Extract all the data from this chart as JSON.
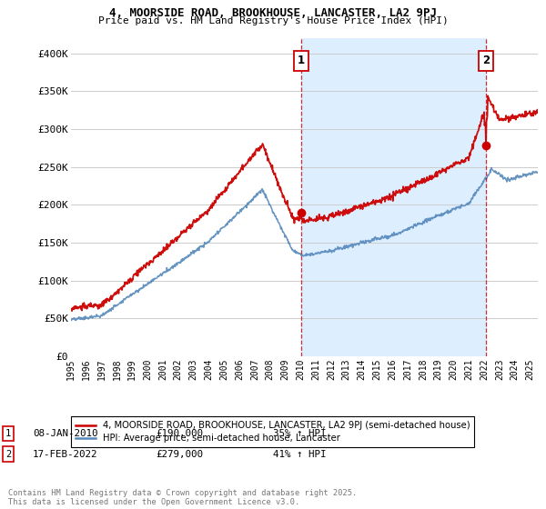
{
  "title_line1": "4, MOORSIDE ROAD, BROOKHOUSE, LANCASTER, LA2 9PJ",
  "title_line2": "Price paid vs. HM Land Registry's House Price Index (HPI)",
  "ylabel_ticks": [
    "£0",
    "£50K",
    "£100K",
    "£150K",
    "£200K",
    "£250K",
    "£300K",
    "£350K",
    "£400K"
  ],
  "ytick_values": [
    0,
    50000,
    100000,
    150000,
    200000,
    250000,
    300000,
    350000,
    400000
  ],
  "ylim": [
    0,
    420000
  ],
  "xlim_start": 1995.0,
  "xlim_end": 2025.5,
  "marker1_x": 2010.03,
  "marker1_y": 190000,
  "marker1_label": "1",
  "marker2_x": 2022.12,
  "marker2_y": 279000,
  "marker2_label": "2",
  "vline1_x": 2010.03,
  "vline2_x": 2022.12,
  "legend_red_label": "4, MOORSIDE ROAD, BROOKHOUSE, LANCASTER, LA2 9PJ (semi-detached house)",
  "legend_blue_label": "HPI: Average price, semi-detached house, Lancaster",
  "annotation1_date": "08-JAN-2010",
  "annotation1_price": "£190,000",
  "annotation1_hpi": "35% ↑ HPI",
  "annotation2_date": "17-FEB-2022",
  "annotation2_price": "£279,000",
  "annotation2_hpi": "41% ↑ HPI",
  "footer": "Contains HM Land Registry data © Crown copyright and database right 2025.\nThis data is licensed under the Open Government Licence v3.0.",
  "red_color": "#cc0000",
  "blue_color": "#5588bb",
  "shade_color": "#ddeeff",
  "grid_color": "#cccccc",
  "bg_color": "#ffffff"
}
